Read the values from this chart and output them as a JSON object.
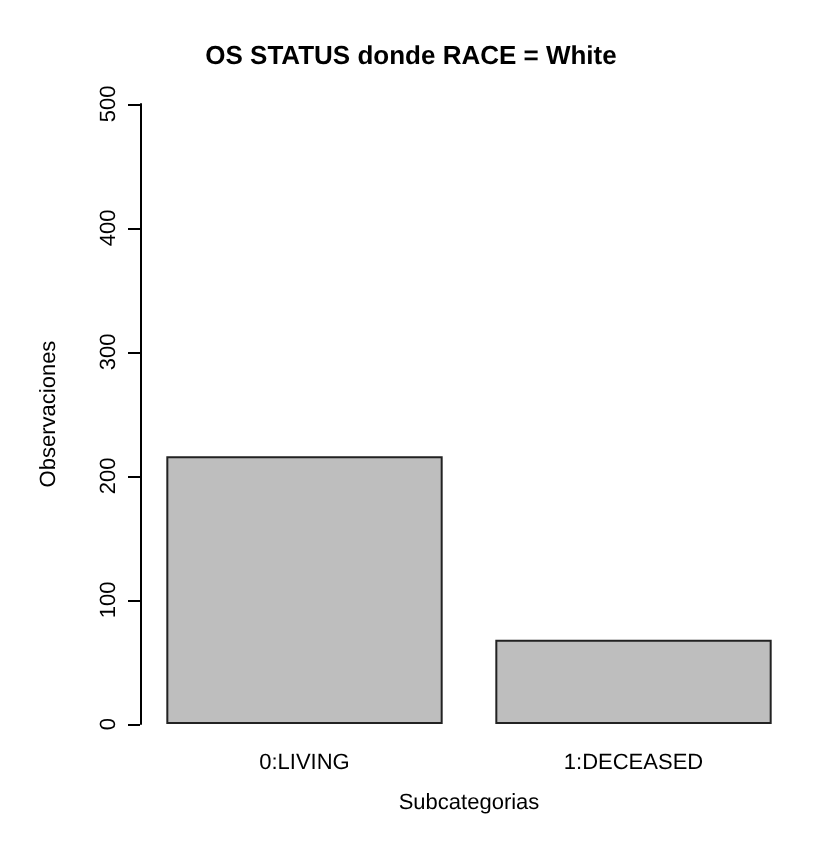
{
  "chart_data": {
    "type": "bar",
    "title": "OS STATUS donde RACE = White",
    "xlabel": "Subcategorias",
    "ylabel": "Observaciones",
    "categories": [
      "0:LIVING",
      "1:DECEASED"
    ],
    "values": [
      216,
      68
    ],
    "color": "#bebebe",
    "ylim": [
      0,
      500
    ],
    "yticks": [
      0,
      100,
      200,
      300,
      400,
      500
    ]
  }
}
